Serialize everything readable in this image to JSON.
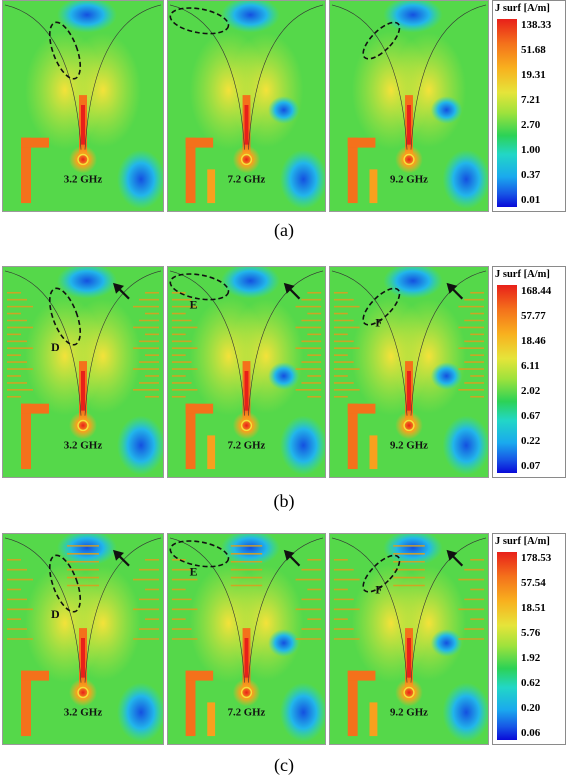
{
  "panels": [
    {
      "caption": "(a)",
      "legend_title": "J surf [A/m]",
      "legend_values": [
        "138.33",
        "51.68",
        "19.31",
        "7.21",
        "2.70",
        "1.00",
        "0.37",
        "0.01"
      ],
      "maps": [
        {
          "freq": "3.2 GHz",
          "marker": ""
        },
        {
          "freq": "7.2 GHz",
          "marker": ""
        },
        {
          "freq": "9.2 GHz",
          "marker": ""
        }
      ]
    },
    {
      "caption": "(b)",
      "legend_title": "J surf [A/m]",
      "legend_values": [
        "168.44",
        "57.77",
        "18.46",
        "6.11",
        "2.02",
        "0.67",
        "0.22",
        "0.07"
      ],
      "maps": [
        {
          "freq": "3.2 GHz",
          "marker": "D"
        },
        {
          "freq": "7.2 GHz",
          "marker": "E"
        },
        {
          "freq": "9.2 GHz",
          "marker": "F"
        }
      ]
    },
    {
      "caption": "(c)",
      "legend_title": "J surf [A/m]",
      "legend_values": [
        "178.53",
        "57.54",
        "18.51",
        "5.76",
        "1.92",
        "0.62",
        "0.20",
        "0.06"
      ],
      "maps": [
        {
          "freq": "3.2 GHz",
          "marker": "D"
        },
        {
          "freq": "7.2 GHz",
          "marker": "E"
        },
        {
          "freq": "9.2 GHz",
          "marker": "F"
        }
      ]
    }
  ],
  "colors": {
    "background_field": "#55d84a",
    "high": "#e8201a",
    "mid": "#f8b01e",
    "low": "#1756e6"
  }
}
